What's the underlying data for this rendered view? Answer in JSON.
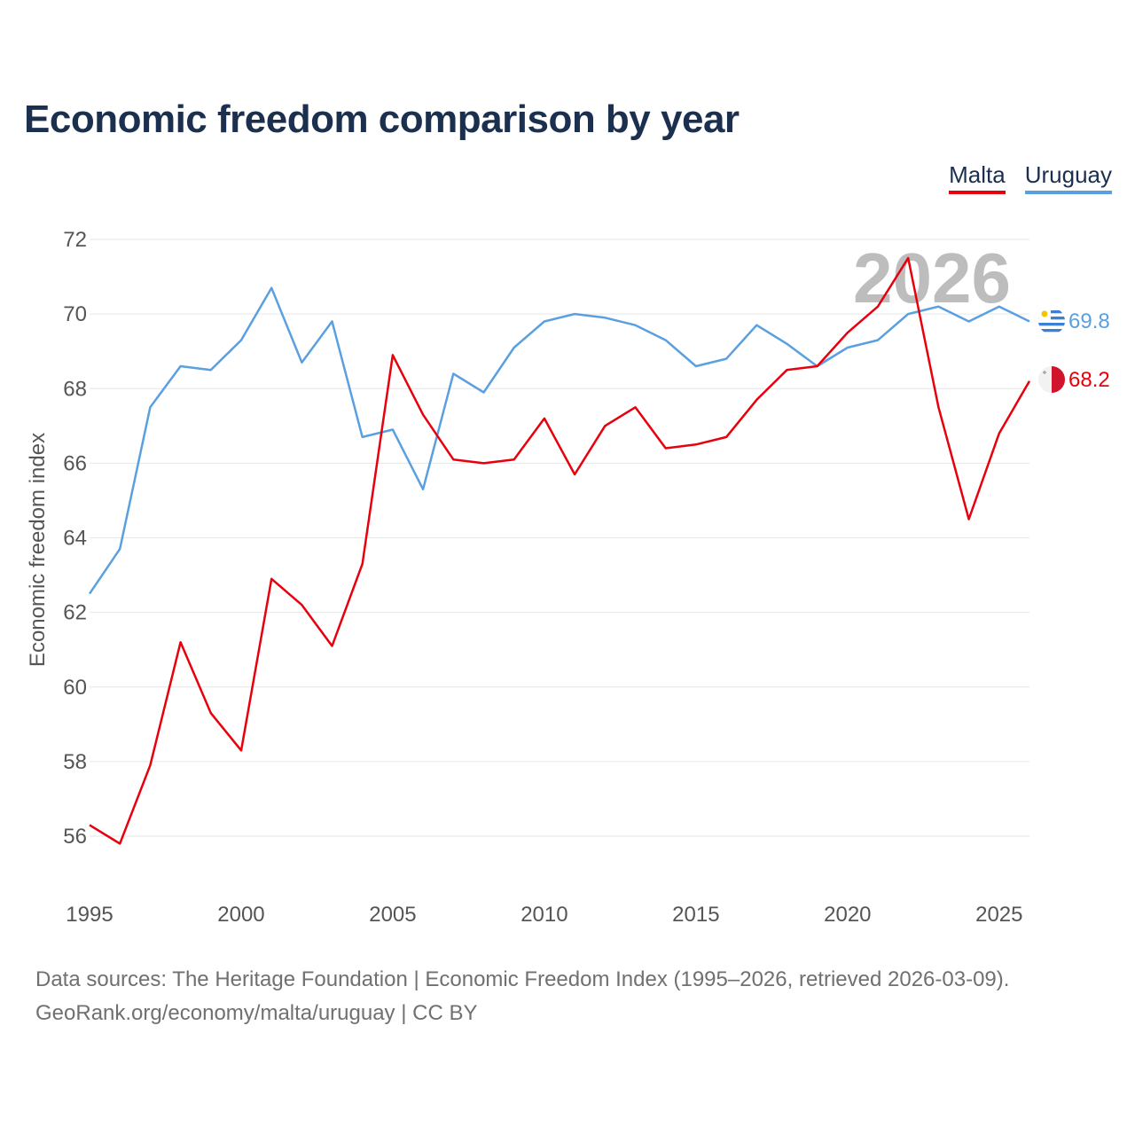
{
  "title": "Economic freedom comparison by year",
  "source": {
    "line1": "Data sources: The Heritage Foundation | Economic Freedom Index (1995–2026, retrieved 2026-03-09).",
    "line2": "GeoRank.org/economy/malta/uruguay | CC BY"
  },
  "colors": {
    "malta": "#e8000d",
    "uruguay": "#5aa0e0",
    "title": "#1b2f4f",
    "grid": "#e6e6e6",
    "watermark": "#bdbdbd"
  },
  "legend": [
    {
      "name": "Malta",
      "color": "#e8000d"
    },
    {
      "name": "Uruguay",
      "color": "#5aa0e0"
    }
  ],
  "chart_data": {
    "type": "line",
    "title": "Economic freedom comparison by year",
    "xlabel": "",
    "ylabel": "Economic freedom index",
    "xlim": [
      1995,
      2026
    ],
    "ylim": [
      55,
      72
    ],
    "xticks": [
      1995,
      2000,
      2005,
      2010,
      2015,
      2020,
      2025
    ],
    "yticks": [
      56,
      58,
      60,
      62,
      64,
      66,
      68,
      70,
      72
    ],
    "grid": true,
    "legend_position": "top-right",
    "current_year_label": "2026",
    "x": [
      1995,
      1996,
      1997,
      1998,
      1999,
      2000,
      2001,
      2002,
      2003,
      2004,
      2005,
      2006,
      2007,
      2008,
      2009,
      2010,
      2011,
      2012,
      2013,
      2014,
      2015,
      2016,
      2017,
      2018,
      2019,
      2020,
      2021,
      2022,
      2023,
      2024,
      2025,
      2026
    ],
    "series": [
      {
        "name": "Malta",
        "color": "#e8000d",
        "end_label": "68.2",
        "flag_icon": "malta-flag-icon",
        "values": [
          56.3,
          55.8,
          57.9,
          61.2,
          59.3,
          58.3,
          62.9,
          62.2,
          61.1,
          63.3,
          68.9,
          67.3,
          66.1,
          66.0,
          66.1,
          67.2,
          65.7,
          67.0,
          67.5,
          66.4,
          66.5,
          66.7,
          67.7,
          68.5,
          68.6,
          69.5,
          70.2,
          71.5,
          67.5,
          64.5,
          66.8,
          68.2
        ]
      },
      {
        "name": "Uruguay",
        "color": "#5aa0e0",
        "end_label": "69.8",
        "flag_icon": "uruguay-flag-icon",
        "values": [
          62.5,
          63.7,
          67.5,
          68.6,
          68.5,
          69.3,
          70.7,
          68.7,
          69.8,
          66.7,
          66.9,
          65.3,
          68.4,
          67.9,
          69.1,
          69.8,
          70.0,
          69.9,
          69.7,
          69.3,
          68.6,
          68.8,
          69.7,
          69.2,
          68.6,
          69.1,
          69.3,
          70.0,
          70.2,
          69.8,
          70.2,
          69.8
        ]
      }
    ]
  }
}
